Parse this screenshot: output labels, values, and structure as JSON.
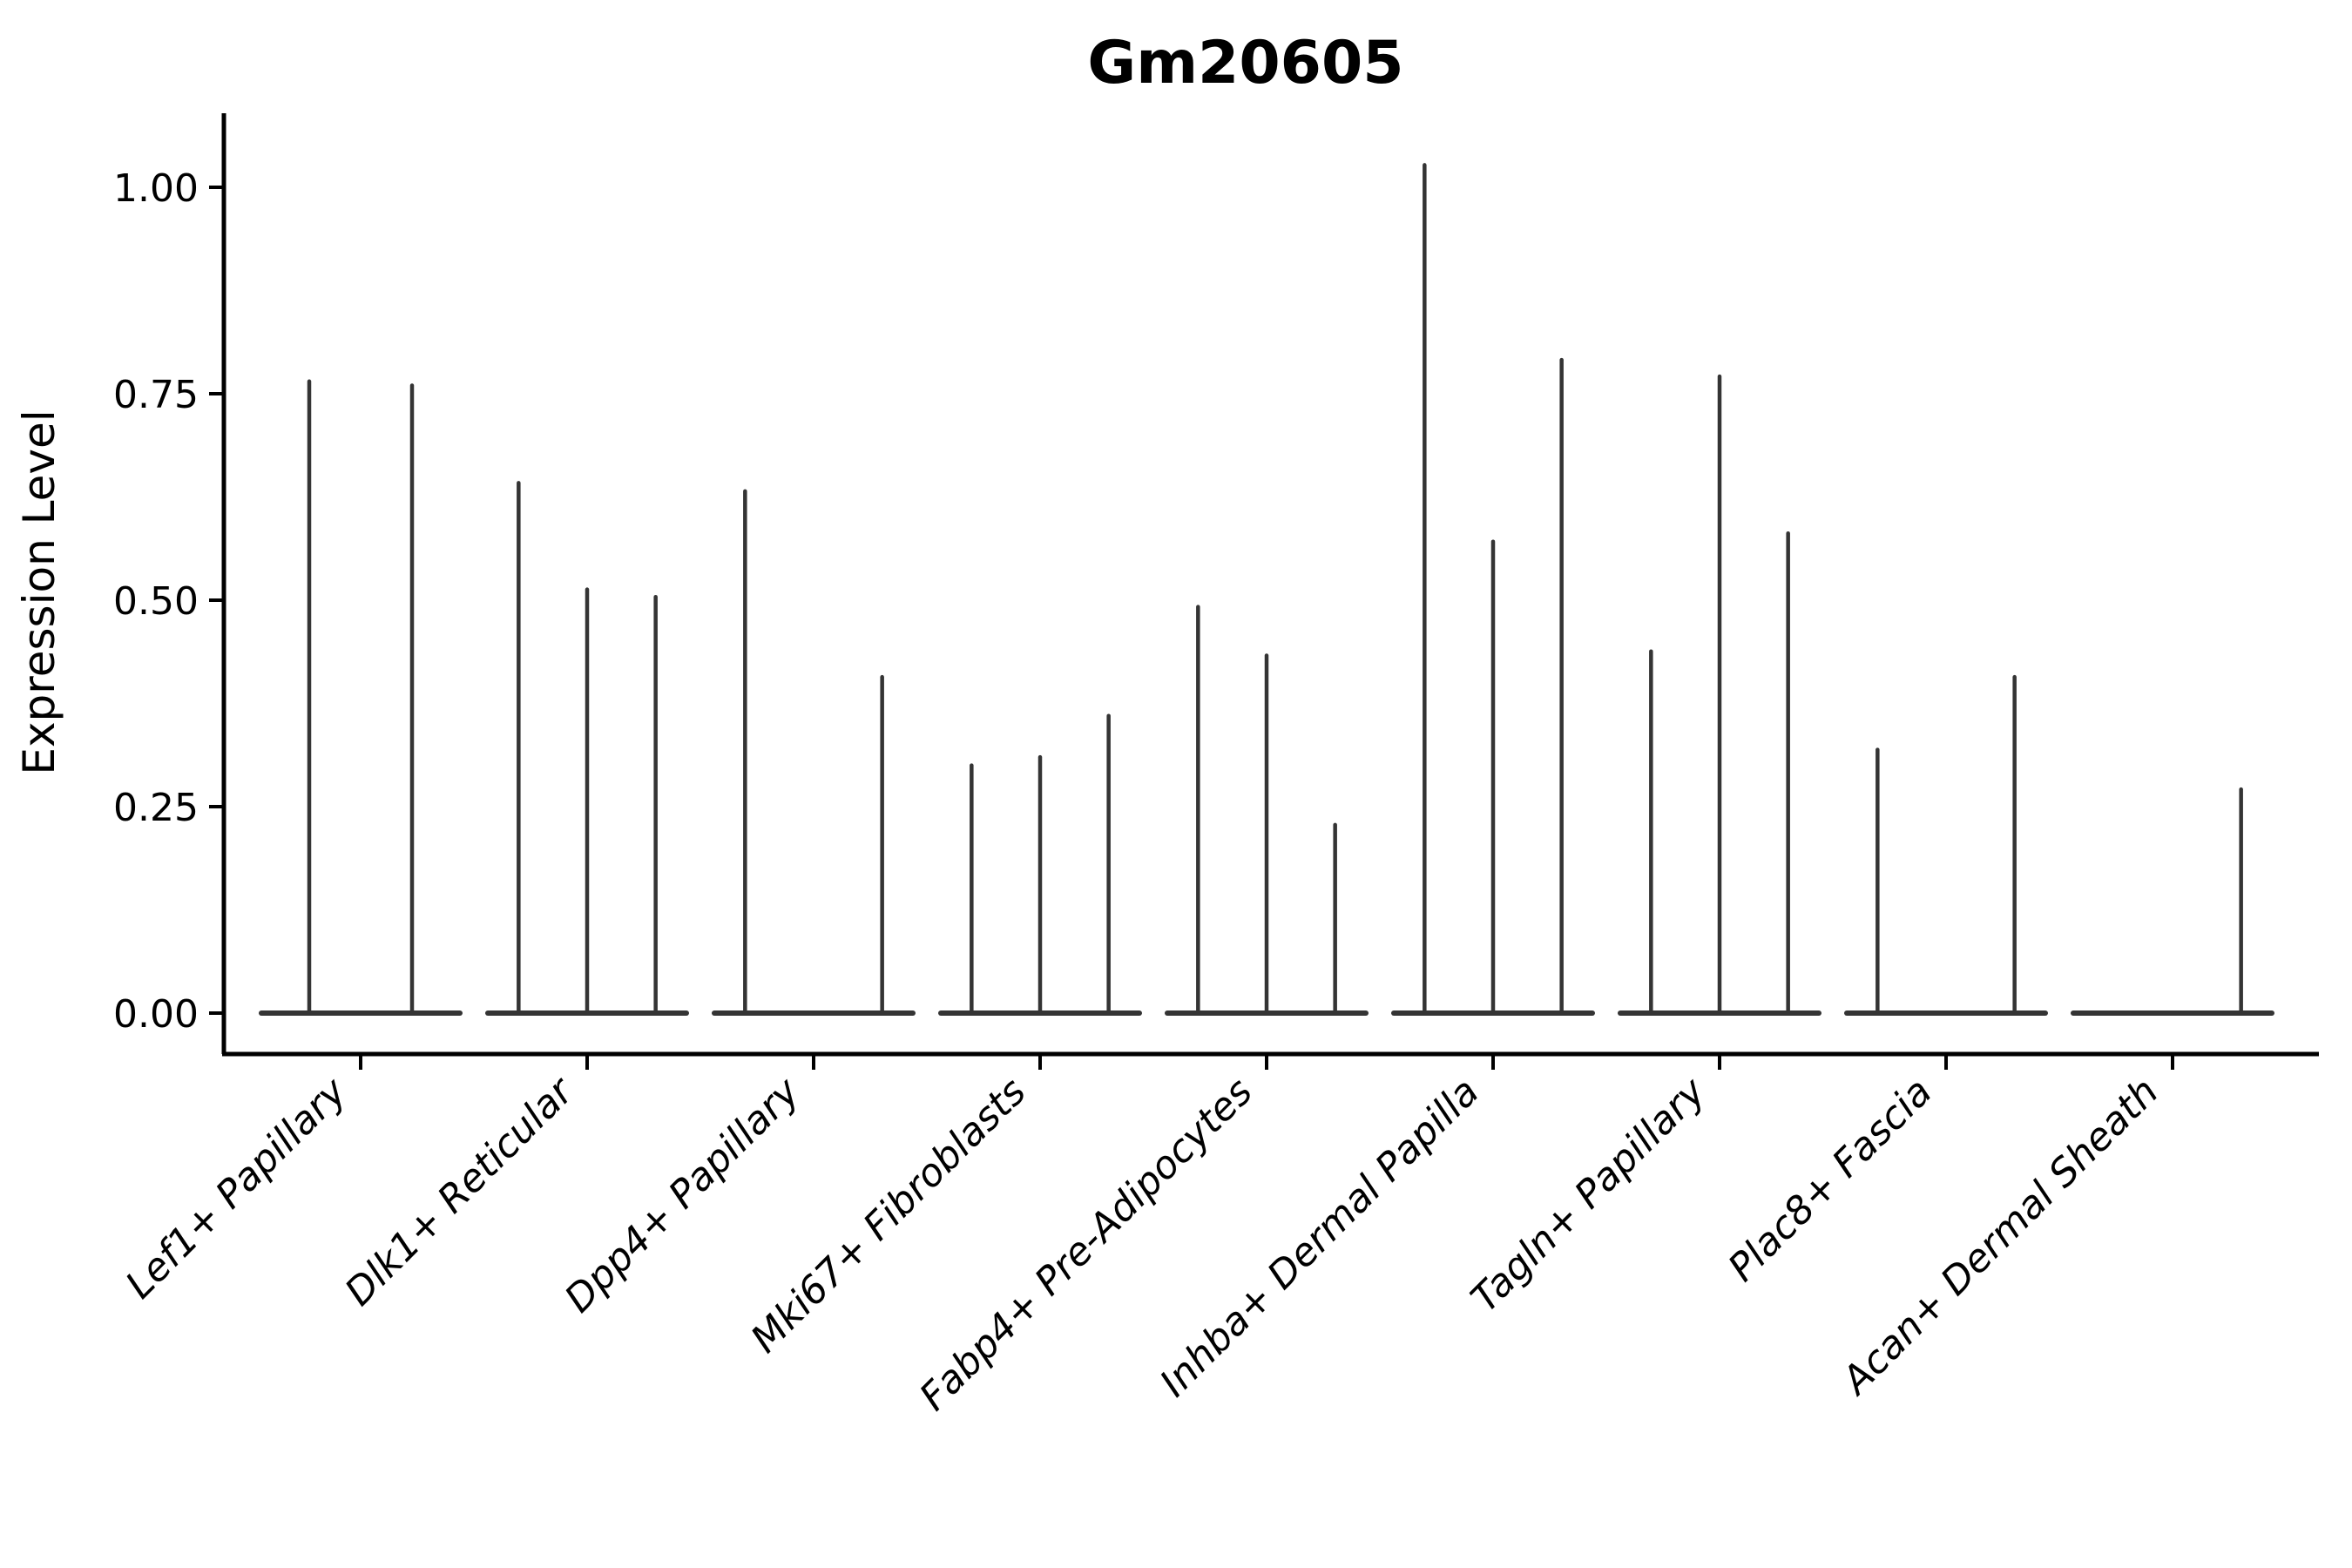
{
  "chart_data": {
    "type": "violin",
    "title": "Gm20605",
    "ylabel": "Expression Level",
    "xlabel": "",
    "ylim": [
      -0.05,
      1.08
    ],
    "yticks": [
      0.0,
      0.25,
      0.5,
      0.75,
      1.0
    ],
    "ytick_labels": [
      "0.00",
      "0.25",
      "0.50",
      "0.75",
      "1.00"
    ],
    "grid": false,
    "legend": "none",
    "violin_color": "#343434",
    "axis_color": "#000000",
    "categories": [
      "Lef1+ Papillary",
      "Dlk1+ Reticular",
      "Dpp4+ Papillary",
      "Mki67+ Fibroblasts",
      "Fabp4+ Pre-Adipocytes",
      "Inhba+ Dermal Papilla",
      "Tagln+ Papillary",
      "Plac8+ Fascia",
      "Acan+ Dermal Sheath"
    ],
    "groups": [
      {
        "label": "Lef1+ Papillary",
        "violin_max_values": [
          0.765,
          0.76
        ]
      },
      {
        "label": "Dlk1+ Reticular",
        "violin_max_values": [
          0.642,
          0.513,
          0.504
        ]
      },
      {
        "label": "Dpp4+ Papillary",
        "violin_max_values": [
          0.632,
          0.0,
          0.407
        ]
      },
      {
        "label": "Mki67+ Fibroblasts",
        "violin_max_values": [
          0.3,
          0.31,
          0.36
        ]
      },
      {
        "label": "Fabp4+ Pre-Adipocytes",
        "violin_max_values": [
          0.492,
          0.433,
          0.228
        ]
      },
      {
        "label": "Inhba+ Dermal Papilla",
        "violin_max_values": [
          1.027,
          0.571,
          0.791
        ]
      },
      {
        "label": "Tagln+ Papillary",
        "violin_max_values": [
          0.438,
          0.771,
          0.581
        ]
      },
      {
        "label": "Plac8+ Fascia",
        "violin_max_values": [
          0.319,
          0.0,
          0.407
        ]
      },
      {
        "label": "Acan+ Dermal Sheath",
        "violin_max_values": [
          0.0,
          0.0,
          0.271
        ]
      }
    ]
  }
}
